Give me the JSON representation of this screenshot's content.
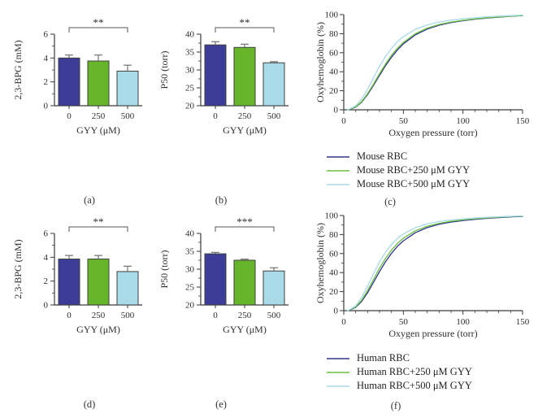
{
  "colors": {
    "background": "#ffffff",
    "bar_fill": [
      "#3d3d99",
      "#66b52b",
      "#a9dae8"
    ],
    "bar_stroke": "#3f3f3f",
    "error_bar": "#666666",
    "line_series": [
      "#32338f",
      "#6abf40",
      "#a9d9e9"
    ],
    "axis": "#3a3a3a",
    "text": "#2e2e2e",
    "significance": "#555555"
  },
  "chart_data": [
    {
      "id": "a",
      "panel_label": "(a)",
      "type": "bar",
      "xlabel": "GYY (μM)",
      "ylabel": "2,3-BPG (mM)",
      "categories": [
        "0",
        "250",
        "500"
      ],
      "values": [
        4.0,
        3.75,
        2.9
      ],
      "errors": [
        0.25,
        0.5,
        0.5
      ],
      "ylim": [
        0,
        6
      ],
      "yticks": [
        0,
        2,
        4,
        6
      ],
      "ytick_minor_step": 1,
      "significance": {
        "label": "**",
        "from": 0,
        "to": 2
      }
    },
    {
      "id": "b",
      "panel_label": "(b)",
      "type": "bar",
      "xlabel": "GYY (μM)",
      "ylabel": "P50 (torr)",
      "categories": [
        "0",
        "250",
        "500"
      ],
      "values": [
        37.0,
        36.3,
        32.0
      ],
      "errors": [
        0.9,
        0.9,
        0.3
      ],
      "ylim": [
        20,
        40
      ],
      "yticks": [
        20,
        25,
        30,
        35,
        40
      ],
      "ytick_minor_step": 2.5,
      "significance": {
        "label": "**",
        "from": 0,
        "to": 2
      }
    },
    {
      "id": "c",
      "panel_label": "(c)",
      "type": "line",
      "xlabel": "Oxygen pressure (torr)",
      "ylabel": "Oxyhemoglobin (%)",
      "xlim": [
        0,
        150
      ],
      "ylim": [
        0,
        100
      ],
      "xticks": [
        0,
        50,
        100,
        150
      ],
      "xtick_minor_step": 10,
      "yticks": [
        0,
        20,
        40,
        60,
        80,
        100
      ],
      "ytick_minor_step": 10,
      "x": [
        3,
        5,
        10,
        15,
        20,
        25,
        30,
        35,
        40,
        45,
        50,
        60,
        70,
        80,
        90,
        100,
        110,
        120,
        130,
        140,
        150
      ],
      "series": [
        {
          "name": "Mouse RBC",
          "y": [
            0,
            0.5,
            2.8,
            8.0,
            16.0,
            25.8,
            36.2,
            46.3,
            55.2,
            62.9,
            69.3,
            78.7,
            84.8,
            88.9,
            91.7,
            93.6,
            95.2,
            96.4,
            97.4,
            98.3,
            99.0
          ]
        },
        {
          "name": "Mouse RBC+250 μM GYY",
          "y": [
            0,
            0.6,
            3.1,
            8.6,
            17.0,
            27.1,
            37.9,
            48.1,
            57.1,
            64.7,
            70.8,
            79.9,
            85.8,
            89.6,
            92.2,
            94.0,
            95.5,
            96.7,
            97.6,
            98.4,
            99.1
          ]
        },
        {
          "name": "Mouse RBC+500 μM GYY",
          "y": [
            0,
            0.9,
            4.2,
            11.4,
            21.9,
            33.9,
            45.7,
            56.0,
            64.6,
            71.5,
            77.0,
            84.5,
            89.2,
            92.2,
            94.2,
            95.6,
            96.8,
            97.7,
            98.4,
            99.0,
            99.5
          ]
        }
      ]
    },
    {
      "id": "d",
      "panel_label": "(d)",
      "type": "bar",
      "xlabel": "GYY (μM)",
      "ylabel": "2,3-BPG (mM)",
      "categories": [
        "0",
        "250",
        "500"
      ],
      "values": [
        3.85,
        3.85,
        2.8
      ],
      "errors": [
        0.3,
        0.3,
        0.45
      ],
      "ylim": [
        0,
        6
      ],
      "yticks": [
        0,
        2,
        4,
        6
      ],
      "ytick_minor_step": 1,
      "significance": {
        "label": "**",
        "from": 0,
        "to": 2
      }
    },
    {
      "id": "e",
      "panel_label": "(e)",
      "type": "bar",
      "xlabel": "GYY (μM)",
      "ylabel": "P50 (torr)",
      "categories": [
        "0",
        "250",
        "500"
      ],
      "values": [
        34.3,
        32.5,
        29.5
      ],
      "errors": [
        0.4,
        0.3,
        0.9
      ],
      "ylim": [
        20,
        40
      ],
      "yticks": [
        20,
        25,
        30,
        35,
        40
      ],
      "ytick_minor_step": 2.5,
      "significance": {
        "label": "***",
        "from": 0,
        "to": 2
      }
    },
    {
      "id": "f",
      "panel_label": "(f)",
      "type": "line",
      "xlabel": "Oxygen pressure (torr)",
      "ylabel": "Oxyhemoglobin (%)",
      "xlim": [
        0,
        150
      ],
      "ylim": [
        0,
        100
      ],
      "xticks": [
        0,
        50,
        100,
        150
      ],
      "xtick_minor_step": 10,
      "yticks": [
        0,
        20,
        40,
        60,
        80,
        100
      ],
      "ytick_minor_step": 10,
      "x": [
        3,
        5,
        10,
        15,
        20,
        25,
        30,
        35,
        40,
        45,
        50,
        60,
        70,
        80,
        90,
        100,
        110,
        120,
        130,
        140,
        150
      ],
      "series": [
        {
          "name": "Human RBC",
          "y": [
            0,
            0.6,
            3.5,
            9.7,
            18.9,
            29.9,
            41.0,
            51.4,
            60.2,
            67.6,
            73.4,
            81.9,
            87.3,
            90.8,
            93.1,
            94.7,
            96.0,
            97.0,
            97.8,
            98.5,
            99.1
          ]
        },
        {
          "name": "Human RBC+250 μM GYY",
          "y": [
            0,
            0.8,
            4.0,
            11.0,
            21.2,
            32.9,
            44.6,
            54.9,
            63.6,
            70.6,
            76.2,
            83.9,
            88.7,
            91.8,
            93.9,
            95.4,
            96.6,
            97.5,
            98.2,
            98.9,
            99.4
          ]
        },
        {
          "name": "Human RBC+500 μM GYY",
          "y": [
            0,
            1.0,
            5.1,
            13.9,
            25.9,
            39.0,
            51.1,
            61.3,
            69.5,
            75.8,
            80.6,
            87.2,
            91.2,
            93.7,
            95.3,
            96.4,
            97.4,
            98.1,
            98.7,
            99.2,
            99.6
          ]
        }
      ]
    }
  ]
}
